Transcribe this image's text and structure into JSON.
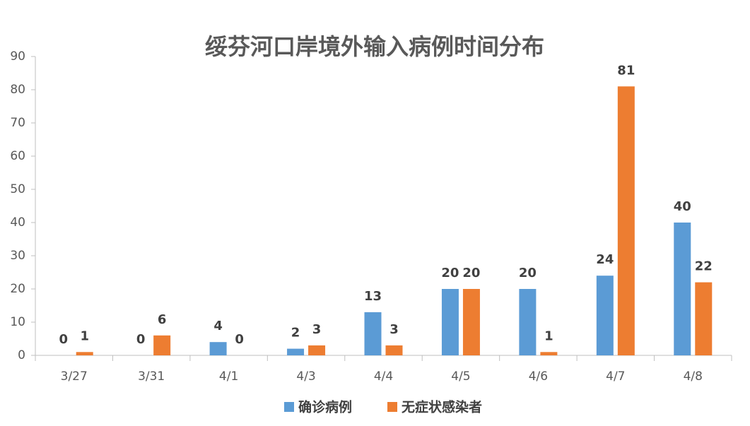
{
  "chart_data": {
    "type": "bar",
    "title": "绥芬河口岸境外输入病例时间分布",
    "categories": [
      "3/27",
      "3/31",
      "4/1",
      "4/3",
      "4/4",
      "4/5",
      "4/6",
      "4/7",
      "4/8"
    ],
    "series": [
      {
        "name": "确诊病例",
        "color": "#5b9bd5",
        "values": [
          0,
          0,
          4,
          2,
          13,
          20,
          20,
          24,
          40
        ]
      },
      {
        "name": "无症状感染者",
        "color": "#ed7d31",
        "values": [
          1,
          6,
          0,
          3,
          3,
          20,
          1,
          81,
          22
        ]
      }
    ],
    "ylim": [
      0,
      90
    ],
    "yticks": [
      0,
      10,
      20,
      30,
      40,
      50,
      60,
      70,
      80,
      90
    ],
    "grid": false,
    "legend": "bottom"
  }
}
